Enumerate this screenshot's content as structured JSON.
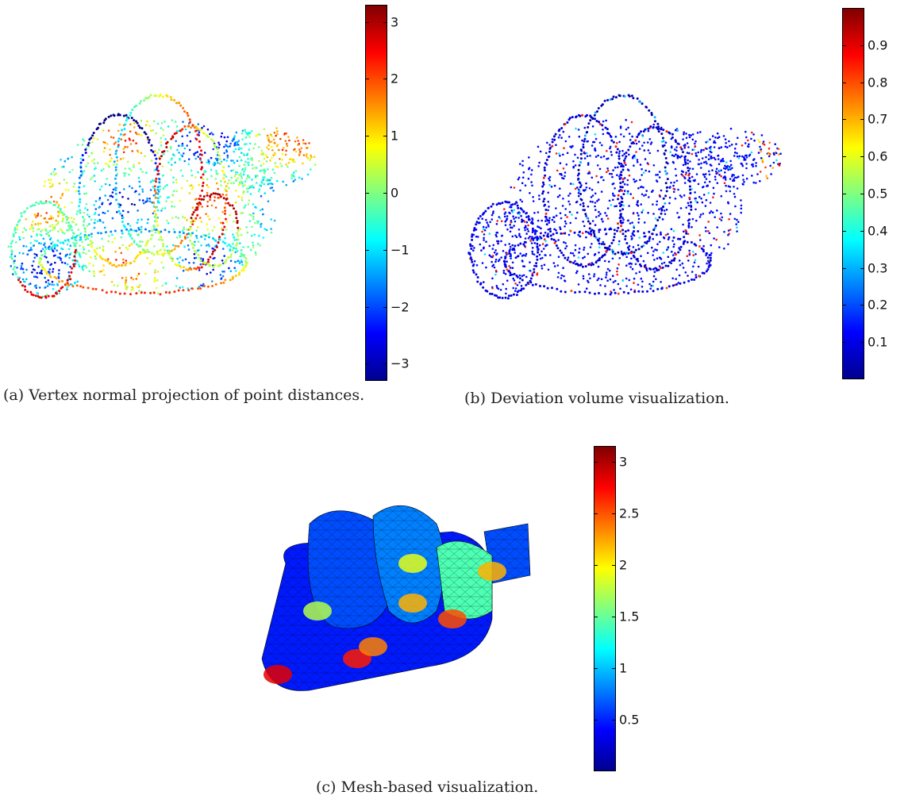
{
  "figures": [
    {
      "id": "a",
      "caption": "(a) Vertex normal projection of point distances.",
      "colorbar": {
        "min": -3.3,
        "max": 3.3,
        "ticks": [
          "3",
          "2",
          "1",
          "0",
          "−1",
          "−2",
          "−3"
        ],
        "tick_values": [
          3,
          2,
          1,
          0,
          -1,
          -2,
          -3
        ]
      },
      "icon": "point-cloud-rotor-visualization"
    },
    {
      "id": "b",
      "caption": "(b) Deviation volume visualization.",
      "colorbar": {
        "min": 0,
        "max": 1.0,
        "ticks": [
          "0.9",
          "0.8",
          "0.7",
          "0.6",
          "0.5",
          "0.4",
          "0.3",
          "0.2",
          "0.1"
        ],
        "tick_values": [
          0.9,
          0.8,
          0.7,
          0.6,
          0.5,
          0.4,
          0.3,
          0.2,
          0.1
        ]
      },
      "icon": "point-cloud-deviation-visualization"
    },
    {
      "id": "c",
      "caption": "(c) Mesh-based visualization.",
      "colorbar": {
        "min": 0,
        "max": 3.15,
        "ticks": [
          "3",
          "2.5",
          "2",
          "1.5",
          "1",
          "0.5"
        ],
        "tick_values": [
          3,
          2.5,
          2,
          1.5,
          1,
          0.5
        ]
      },
      "icon": "mesh-rotor-visualization"
    }
  ],
  "colors": {
    "jet_low": "#00008f",
    "jet_high": "#800000"
  }
}
